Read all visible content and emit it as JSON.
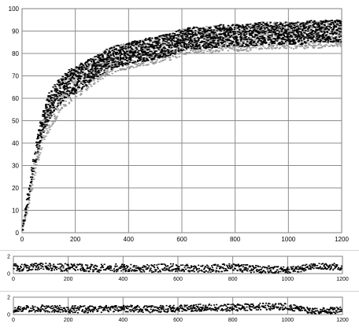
{
  "chart_data": [
    {
      "type": "scatter",
      "title": "",
      "xlabel": "",
      "ylabel": "",
      "xlim": [
        0,
        1200
      ],
      "ylim": [
        0,
        100
      ],
      "x_ticks": [
        0,
        200,
        400,
        600,
        800,
        1000,
        1200
      ],
      "y_ticks": [
        0,
        10,
        20,
        30,
        40,
        50,
        60,
        70,
        80,
        90,
        100
      ],
      "grid": true,
      "legend": "none",
      "colors": {
        "series_black": "#000000",
        "series_grey": "#9a9a9a",
        "grid": "#8c8c8c"
      },
      "series": [
        {
          "x": [
            0,
            20,
            40,
            60,
            80,
            100,
            120,
            140,
            160,
            180,
            200,
            240,
            280,
            320,
            360,
            400,
            440,
            480,
            520,
            560,
            600,
            650,
            700,
            750,
            800,
            850,
            900,
            950,
            1000,
            1050,
            1100,
            1150,
            1200
          ],
          "y": [
            0,
            14,
            28,
            40,
            50,
            56,
            60,
            63,
            65,
            67,
            68,
            71,
            74,
            77,
            79,
            80,
            81,
            82,
            83,
            84,
            86,
            87,
            87,
            88,
            88,
            88,
            89,
            89,
            89,
            89,
            90,
            90,
            90
          ],
          "spread": [
            2,
            3,
            4,
            5,
            6,
            6,
            6,
            6,
            6,
            6,
            6,
            6,
            5,
            5,
            5,
            5,
            5,
            5,
            5,
            5,
            5,
            5,
            5,
            5,
            5,
            5,
            5,
            5,
            5,
            5,
            5,
            5,
            5
          ]
        },
        {
          "x": [
            0,
            20,
            40,
            60,
            80,
            100,
            120,
            140,
            160,
            180,
            200,
            240,
            280,
            320,
            360,
            400,
            440,
            480,
            520,
            560,
            600,
            650,
            700,
            750,
            800,
            850,
            900,
            950,
            1000,
            1050,
            1100,
            1150,
            1200
          ],
          "y": [
            0,
            12,
            24,
            36,
            46,
            52,
            56,
            60,
            63,
            65,
            67,
            70,
            73,
            76,
            78,
            79,
            80,
            81,
            82,
            83,
            85,
            86,
            86,
            87,
            87,
            87,
            88,
            88,
            88,
            88,
            88,
            89,
            89
          ],
          "spread": [
            2,
            3,
            4,
            5,
            6,
            7,
            7,
            7,
            7,
            7,
            7,
            7,
            6,
            6,
            6,
            6,
            6,
            6,
            6,
            6,
            6,
            6,
            6,
            6,
            6,
            6,
            6,
            6,
            6,
            6,
            6,
            6,
            6
          ]
        }
      ]
    },
    {
      "type": "scatter",
      "title": "",
      "xlim": [
        0,
        1200
      ],
      "ylim": [
        0,
        2
      ],
      "x_ticks": [
        0,
        200,
        400,
        600,
        800,
        1000,
        1200
      ],
      "y_ticks": [
        0,
        2
      ],
      "grid": true,
      "legend": "none",
      "series": [
        {
          "x": [
            0,
            100,
            200,
            300,
            400,
            500,
            600,
            700,
            800,
            900,
            1000,
            1100,
            1200
          ],
          "level": [
            0.7,
            0.8,
            0.7,
            0.6,
            0.7,
            0.6,
            0.7,
            0.6,
            0.7,
            0.5,
            0.4,
            0.8,
            0.8
          ],
          "spread": [
            0.45,
            0.45,
            0.45,
            0.45,
            0.45,
            0.45,
            0.45,
            0.45,
            0.45,
            0.45,
            0.35,
            0.4,
            0.4
          ]
        }
      ]
    },
    {
      "type": "scatter",
      "title": "",
      "xlim": [
        0,
        1200
      ],
      "ylim": [
        0,
        2
      ],
      "x_ticks": [
        0,
        200,
        400,
        600,
        800,
        1000,
        1200
      ],
      "y_ticks": [
        0,
        2
      ],
      "grid": true,
      "legend": "none",
      "series": [
        {
          "x": [
            0,
            100,
            200,
            300,
            400,
            500,
            600,
            700,
            800,
            900,
            1000,
            1100,
            1200
          ],
          "level": [
            0.6,
            0.7,
            0.6,
            0.6,
            0.7,
            0.6,
            0.7,
            0.8,
            0.8,
            0.9,
            0.9,
            0.4,
            0.5
          ],
          "spread": [
            0.4,
            0.4,
            0.4,
            0.4,
            0.4,
            0.4,
            0.4,
            0.4,
            0.4,
            0.4,
            0.4,
            0.35,
            0.35
          ]
        }
      ]
    }
  ]
}
